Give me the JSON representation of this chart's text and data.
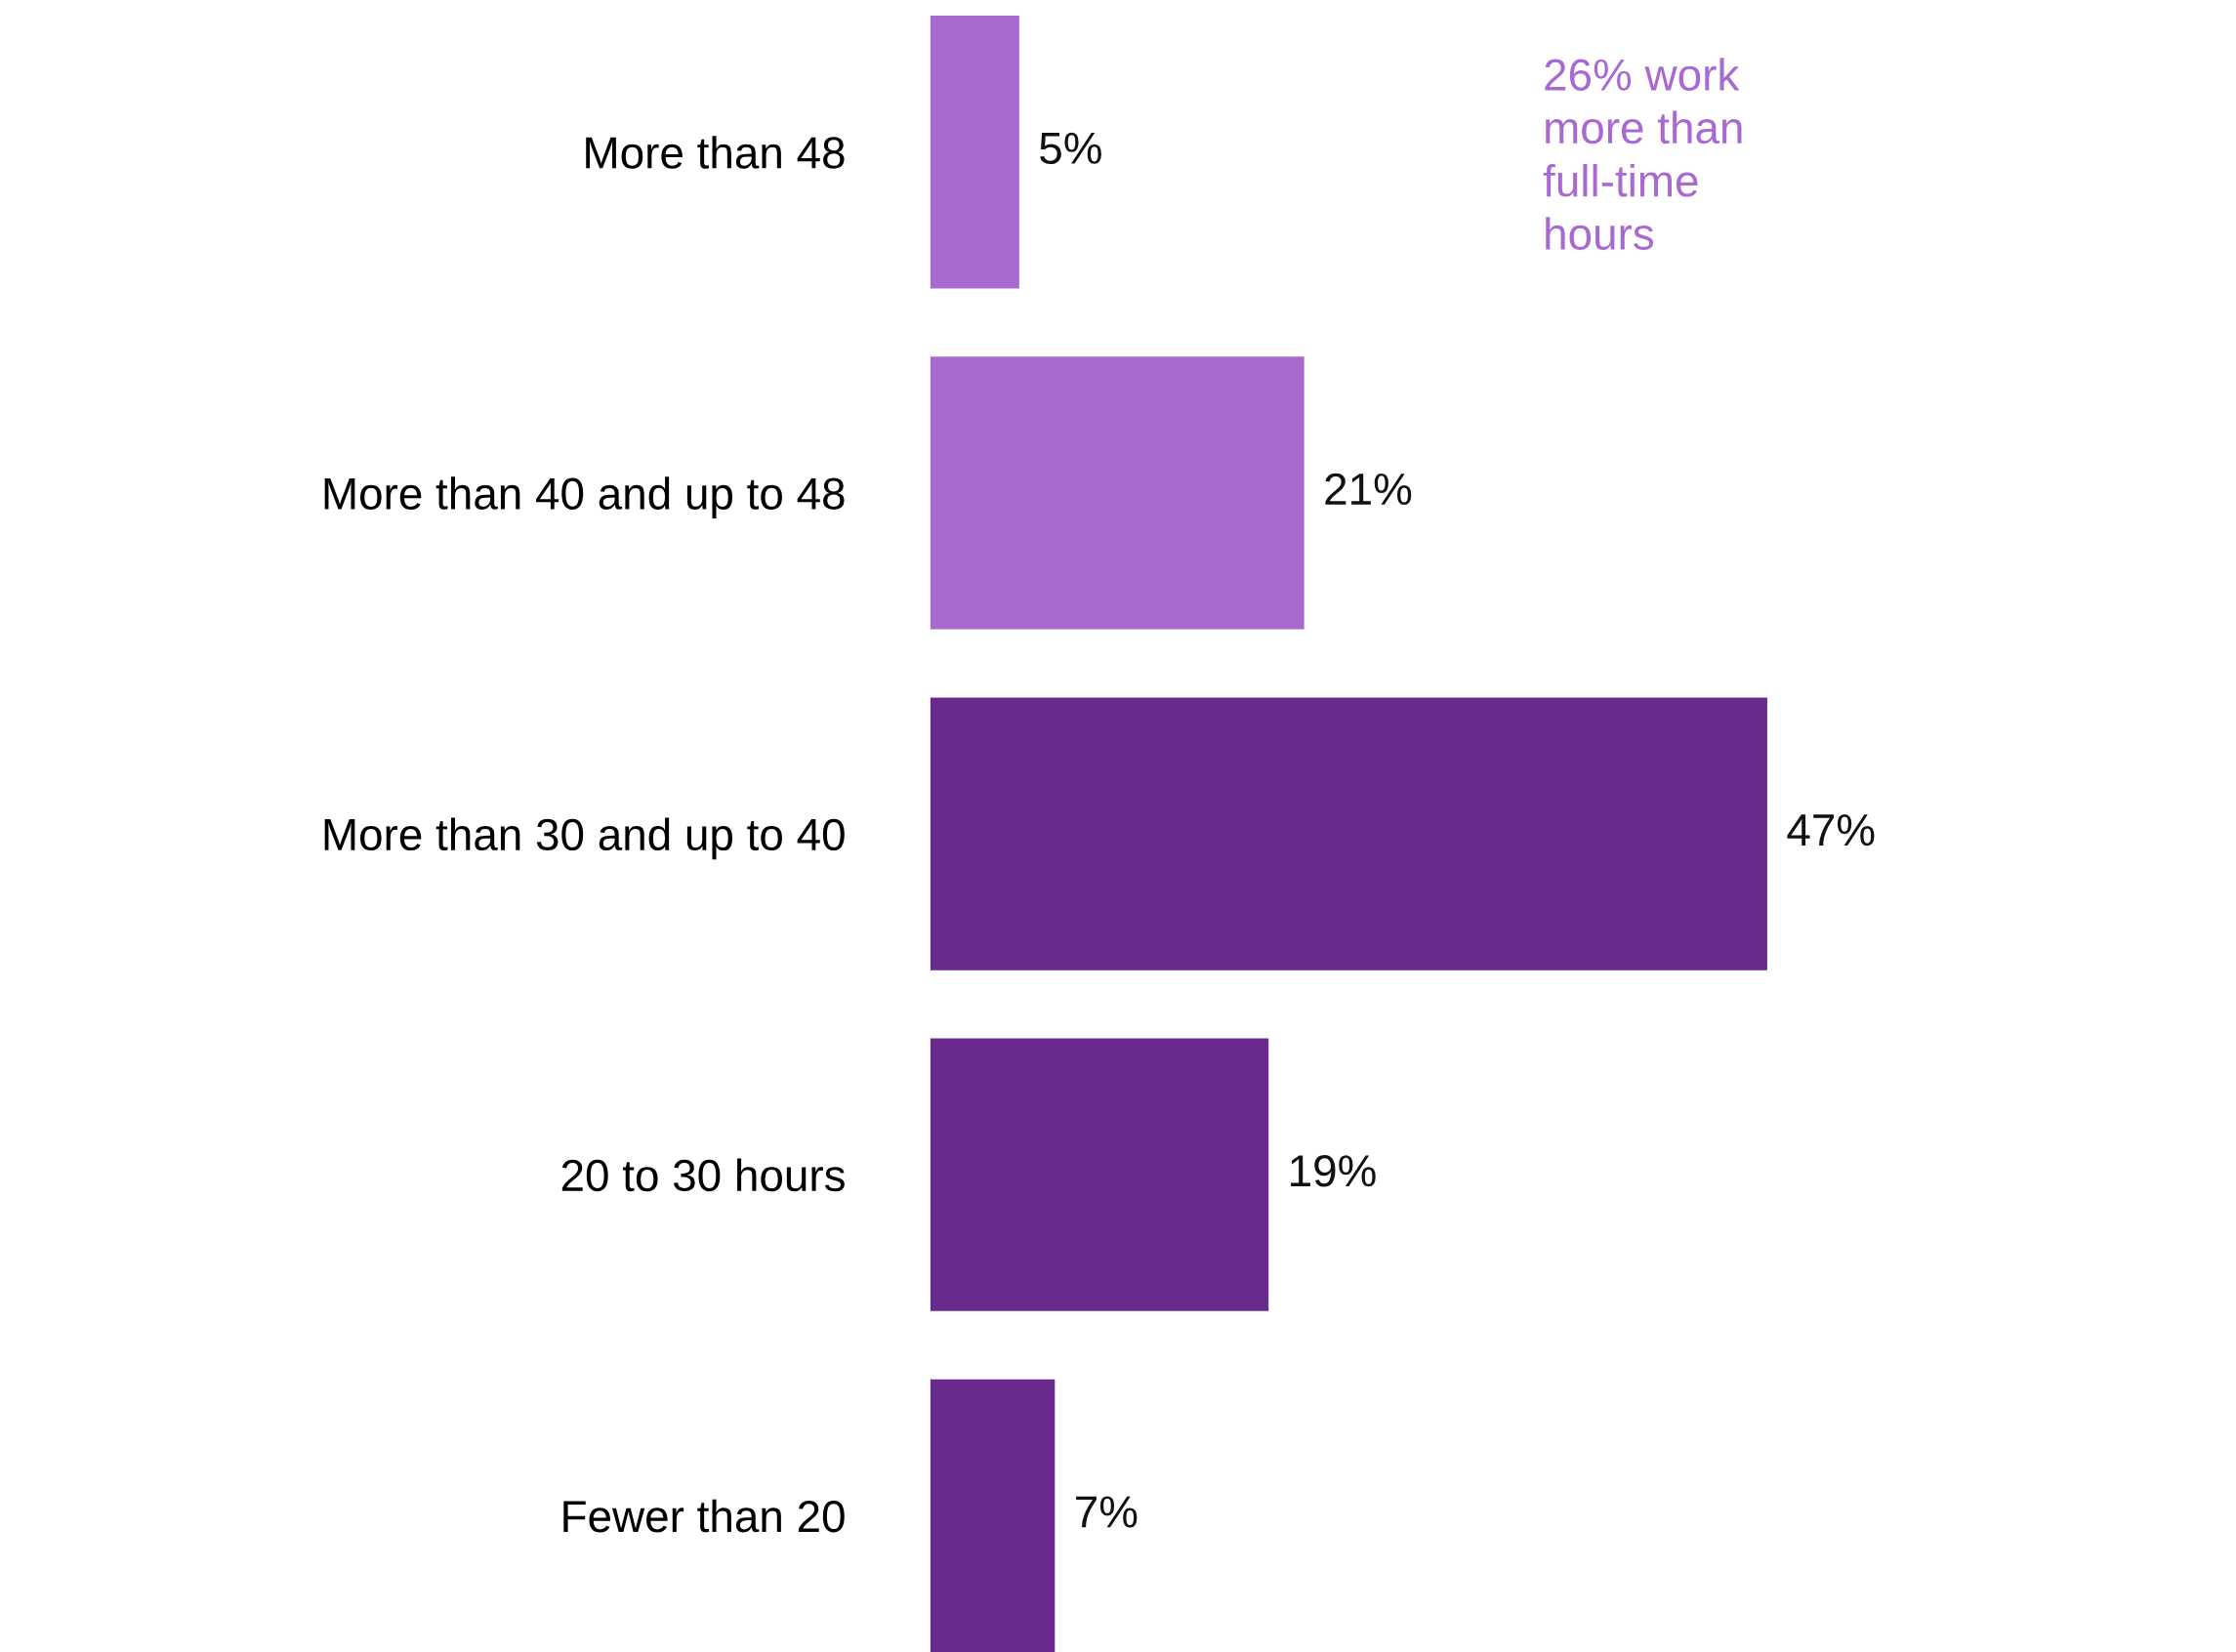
{
  "chart_data": {
    "type": "bar",
    "orientation": "horizontal",
    "categories": [
      "More than 48",
      "More than 40 and up to 48",
      "More than 30 and up to 40",
      "20 to 30 hours",
      "Fewer than 20"
    ],
    "values": [
      5,
      21,
      47,
      19,
      7
    ],
    "colors": [
      "#a86ad0",
      "#a86ad0",
      "#682a8c",
      "#682a8c",
      "#682a8c"
    ],
    "value_labels": [
      "5%",
      "21%",
      "47%",
      "19%",
      "7%"
    ],
    "annotations": [
      "26% work\nmore than\nfull-time\nhours"
    ],
    "grid": false,
    "legend": false
  }
}
